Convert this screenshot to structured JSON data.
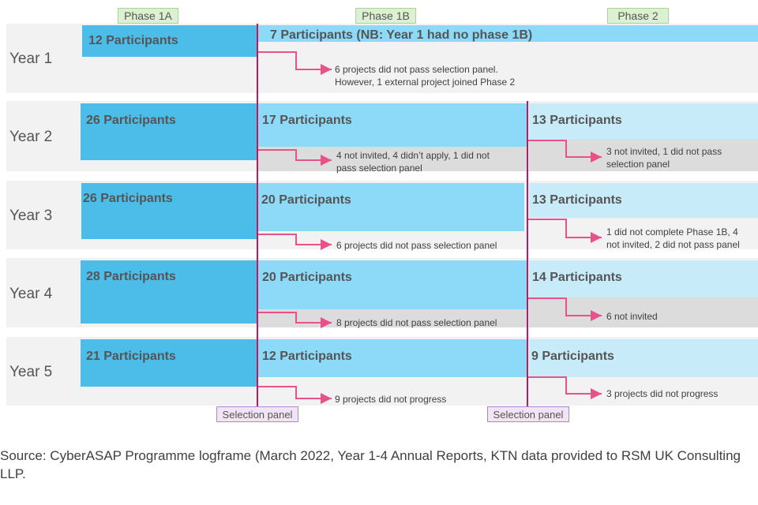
{
  "phases": {
    "phase_1a": "Phase 1A",
    "phase_1b": "Phase 1B",
    "phase_2": "Phase 2"
  },
  "selection_panel": "Selection panel",
  "years": [
    {
      "label": "Year 1",
      "phase_1a": "12 Participants",
      "phase_1b": "7 Participants  (NB: Year 1 had no phase 1B)",
      "note_1a": "6 projects did not pass selection panel.\nHowever, 1 external project joined Phase 2"
    },
    {
      "label": "Year 2",
      "phase_1a": "26 Participants",
      "phase_1b": "17 Participants",
      "phase_2": "13 Participants",
      "note_1a": "4 not invited, 4 didn’t apply, 1 did not\npass selection panel",
      "note_1b": "3 not invited, 1 did not pass\nselection panel"
    },
    {
      "label": "Year 3",
      "phase_1a": "26 Participants",
      "phase_1b": "20 Participants",
      "phase_2": "13 Participants",
      "note_1a": "6 projects did not pass selection panel",
      "note_1b": "1 did not complete Phase 1B, 4\nnot invited, 2 did not pass panel"
    },
    {
      "label": "Year 4",
      "phase_1a": "28 Participants",
      "phase_1b": "20 Participants",
      "phase_2": "14 Participants",
      "note_1a": "8 projects did not pass selection panel",
      "note_1b": "6 not invited"
    },
    {
      "label": "Year 5",
      "phase_1a": "21 Participants",
      "phase_1b": "12 Participants",
      "phase_2": "9 Participants",
      "note_1a": "9 projects did not progress",
      "note_1b": "3 projects did not progress"
    }
  ],
  "source": "Source: CyberASAP Programme logframe (March 2022, Year 1-4 Annual Reports, KTN data provided to RSM UK Consulting LLP.",
  "colors": {
    "phase_1a": "#4cbde9",
    "phase_1b": "#8cdaf8",
    "phase_2": "#c8ebfa",
    "selection_line": "#c0185a",
    "arrow": "#e8528a"
  }
}
